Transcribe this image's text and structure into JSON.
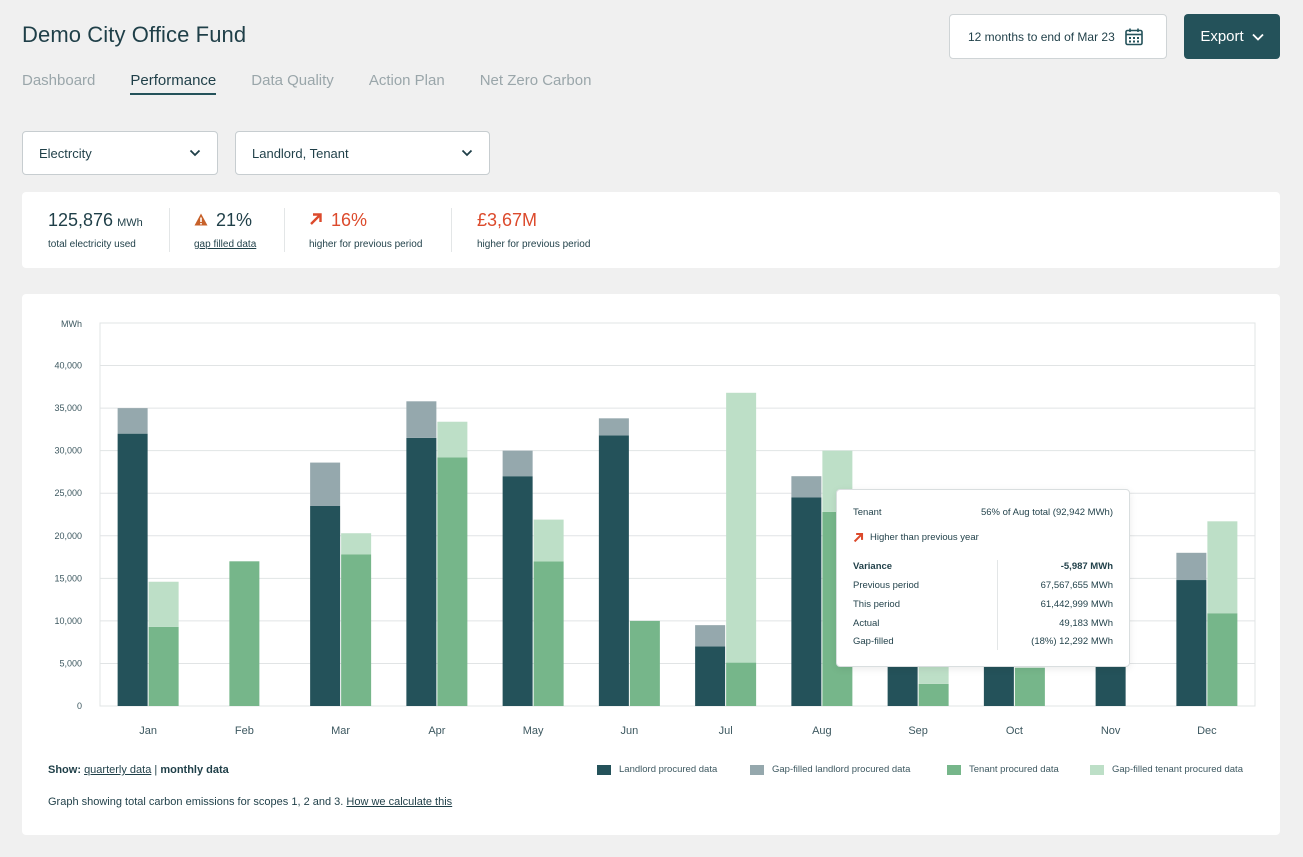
{
  "header": {
    "title": "Demo City Office Fund",
    "date_range": "12 months to end of Mar 23",
    "export_label": "Export"
  },
  "tabs": [
    {
      "label": "Dashboard"
    },
    {
      "label": "Performance"
    },
    {
      "label": "Data Quality"
    },
    {
      "label": "Action Plan"
    },
    {
      "label": "Net Zero Carbon"
    }
  ],
  "filters": {
    "fuel": "Electrcity",
    "ownership": "Landlord, Tenant"
  },
  "stats": {
    "total": {
      "value": "125,876",
      "unit": "MWh",
      "label": "total electricity used"
    },
    "gap": {
      "value": "21%",
      "label": "gap filled data"
    },
    "change": {
      "value": "16%",
      "label": "higher for previous period"
    },
    "cost": {
      "value": "£3,67M",
      "label": "higher for previous period"
    }
  },
  "colors": {
    "landlord": "#24525a",
    "landlord_gap": "#95a8ad",
    "tenant": "#76b68a",
    "tenant_gap": "#bddfc7",
    "accent": "#24525a",
    "red": "#dc4a2c",
    "warning": "#c7612a"
  },
  "chart_data": {
    "type": "bar",
    "ylabel": "MWh",
    "ylim": [
      0,
      45000
    ],
    "yticks": [
      "0",
      "5,000",
      "10,000",
      "15,000",
      "20,000",
      "25,000",
      "30,000",
      "35,000",
      "40,000"
    ],
    "categories": [
      "Jan",
      "Feb",
      "Mar",
      "Apr",
      "May",
      "Jun",
      "Jul",
      "Aug",
      "Sep",
      "Oct",
      "Nov",
      "Dec"
    ],
    "series": [
      {
        "name": "Landlord procured data",
        "values": [
          32000,
          0,
          23500,
          31500,
          27000,
          31800,
          7000,
          24500,
          9000,
          9000,
          9000,
          14800
        ]
      },
      {
        "name": "Gap-filled landlord procured data",
        "values": [
          3000,
          0,
          5100,
          4300,
          3000,
          2000,
          2500,
          2500,
          0,
          0,
          0,
          3200
        ]
      },
      {
        "name": "Tenant procured data",
        "values": [
          9300,
          17000,
          17800,
          29200,
          17000,
          10000,
          5100,
          22800,
          2600,
          4500,
          0,
          10900
        ]
      },
      {
        "name": "Gap-filled tenant procured data",
        "values": [
          5300,
          0,
          2500,
          4200,
          4900,
          0,
          31700,
          7200,
          3500,
          0,
          0,
          10800
        ]
      }
    ]
  },
  "tooltip": {
    "tenant_label": "Tenant",
    "tenant_value": "56% of Aug total (92,942 MWh)",
    "trend_text": "Higher than previous year",
    "rows": [
      {
        "label": "Variance",
        "value": "-5,987 MWh"
      },
      {
        "label": "Previous period",
        "value": "67,567,655 MWh"
      },
      {
        "label": "This period",
        "value": "61,442,999 MWh"
      },
      {
        "label": "Actual",
        "value": "49,183 MWh"
      },
      {
        "label": "Gap-filled",
        "value": "(18%) 12,292 MWh"
      }
    ]
  },
  "footer": {
    "show_label": "Show:",
    "quarterly_link": "quarterly data",
    "separator": "|",
    "monthly_label": "monthly data",
    "note": "Graph showing total carbon emissions for scopes 1, 2 and 3.",
    "note_link": "How we calculate this"
  }
}
